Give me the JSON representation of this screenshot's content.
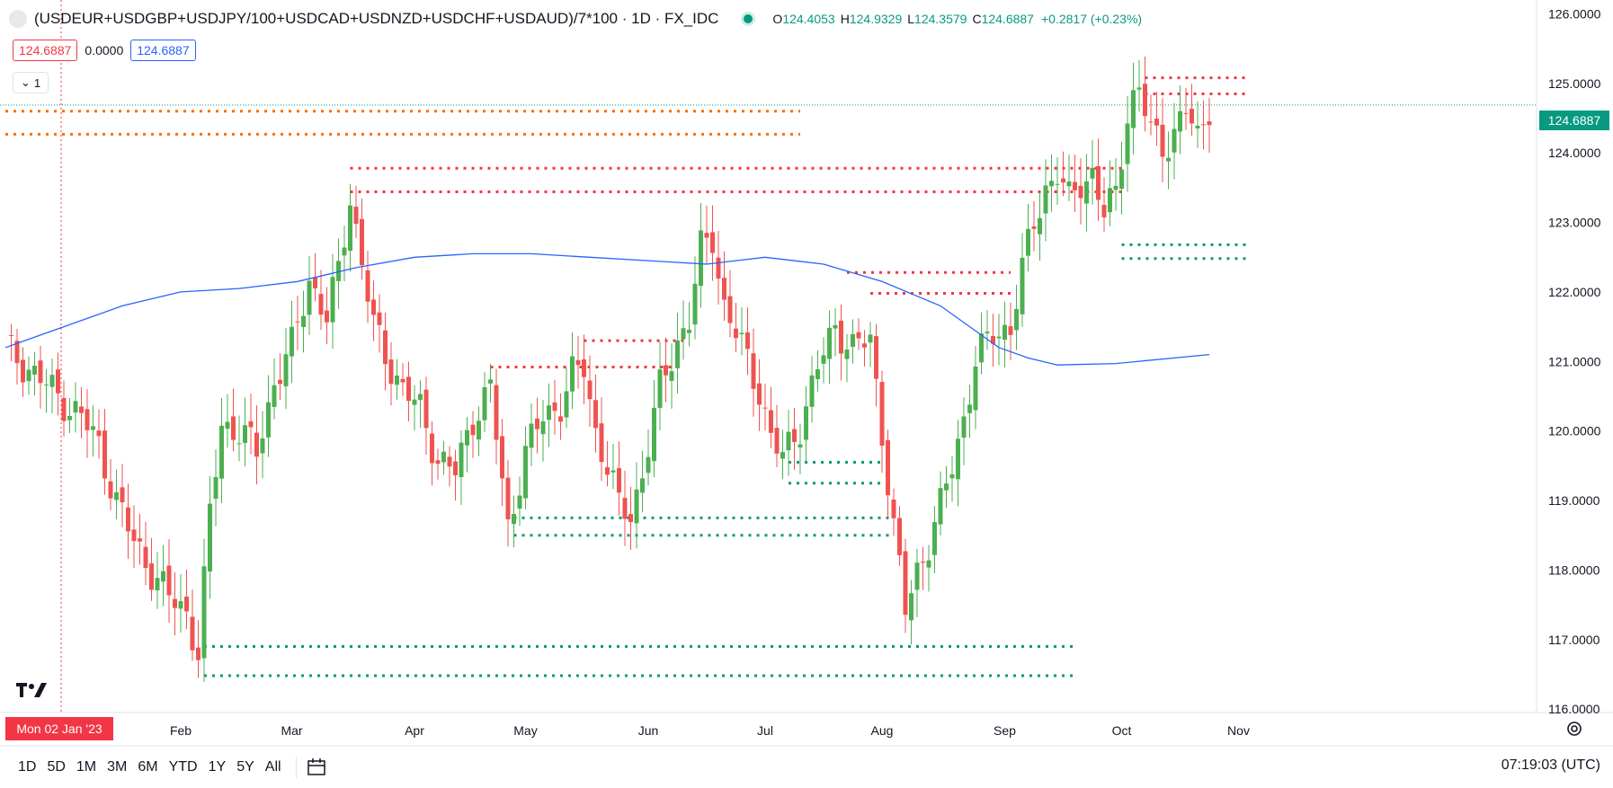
{
  "header": {
    "title": "(USDEUR+USDGBP+USDJPY/100+USDCAD+USDNZD+USDCHF+USDAUD)/7*100 · 1D · FX_IDC",
    "ohlc": [
      {
        "k": "O",
        "v": "124.4053"
      },
      {
        "k": "H",
        "v": "124.9329"
      },
      {
        "k": "L",
        "v": "124.3579"
      },
      {
        "k": "C",
        "v": "124.6887"
      }
    ],
    "change": "+0.2817 (+0.23%)"
  },
  "indicator": {
    "value_red": "124.6887",
    "value_zero": "0.0000",
    "value_blue": "124.6887"
  },
  "collapse_label": "1",
  "last_price_label": "124.6887",
  "crosshair_date": "Mon 02 Jan '23",
  "bottom_bar": {
    "ranges": [
      "1D",
      "5D",
      "1M",
      "3M",
      "6M",
      "YTD",
      "1Y",
      "5Y",
      "All"
    ],
    "time": "07:19:03 (UTC)"
  },
  "colors": {
    "up": "#4caf50",
    "down": "#ef5350",
    "ma": "#2962ff",
    "orange": "#ff6d00",
    "red_level": "#f23645",
    "green_level": "#089981"
  },
  "chart_data": {
    "type": "candlestick",
    "x_labels": [
      "Feb",
      "Mar",
      "Apr",
      "May",
      "Jun",
      "Jul",
      "Aug",
      "Sep",
      "Oct",
      "Nov"
    ],
    "y_ticks": [
      "126.0000",
      "125.0000",
      "124.0000",
      "123.0000",
      "122.0000",
      "121.0000",
      "120.0000",
      "119.0000",
      "118.0000",
      "117.0000",
      "116.0000"
    ],
    "ylim": [
      115.95,
      126.2
    ],
    "ma_series": [
      [
        0,
        121.2
      ],
      [
        10,
        121.5
      ],
      [
        20,
        121.8
      ],
      [
        30,
        122.0
      ],
      [
        40,
        122.05
      ],
      [
        50,
        122.15
      ],
      [
        60,
        122.35
      ],
      [
        70,
        122.5
      ],
      [
        80,
        122.55
      ],
      [
        90,
        122.55
      ],
      [
        100,
        122.5
      ],
      [
        110,
        122.45
      ],
      [
        120,
        122.4
      ],
      [
        125,
        122.45
      ],
      [
        130,
        122.5
      ],
      [
        140,
        122.4
      ],
      [
        150,
        122.15
      ],
      [
        160,
        121.8
      ],
      [
        165,
        121.5
      ],
      [
        170,
        121.2
      ],
      [
        175,
        121.05
      ],
      [
        180,
        120.95
      ],
      [
        190,
        120.97
      ],
      [
        200,
        121.05
      ],
      [
        206,
        121.1
      ]
    ],
    "levels": [
      {
        "color": "orange",
        "y": 124.6,
        "x0": 0,
        "x1": 136
      },
      {
        "color": "orange",
        "y": 124.27,
        "x0": 0,
        "x1": 136
      },
      {
        "color": "red",
        "y": 125.08,
        "x0": 195,
        "x1": 213
      },
      {
        "color": "red",
        "y": 124.85,
        "x0": 195,
        "x1": 213
      },
      {
        "color": "red",
        "y": 123.78,
        "x0": 59,
        "x1": 191
      },
      {
        "color": "red",
        "y": 123.44,
        "x0": 59,
        "x1": 191
      },
      {
        "color": "red",
        "y": 122.28,
        "x0": 144,
        "x1": 172
      },
      {
        "color": "red",
        "y": 121.98,
        "x0": 148,
        "x1": 172
      },
      {
        "color": "red",
        "y": 121.3,
        "x0": 99,
        "x1": 116
      },
      {
        "color": "red",
        "y": 120.92,
        "x0": 83,
        "x1": 116
      },
      {
        "color": "green",
        "y": 122.68,
        "x0": 191,
        "x1": 213
      },
      {
        "color": "green",
        "y": 122.48,
        "x0": 191,
        "x1": 213
      },
      {
        "color": "green",
        "y": 119.55,
        "x0": 134,
        "x1": 151
      },
      {
        "color": "green",
        "y": 119.25,
        "x0": 134,
        "x1": 151
      },
      {
        "color": "green",
        "y": 118.75,
        "x0": 87,
        "x1": 152
      },
      {
        "color": "green",
        "y": 118.5,
        "x0": 87,
        "x1": 152
      },
      {
        "color": "green",
        "y": 116.9,
        "x0": 34,
        "x1": 183
      },
      {
        "color": "green",
        "y": 116.48,
        "x0": 34,
        "x1": 183
      }
    ],
    "candle_anchors": [
      [
        0,
        121.2
      ],
      [
        4,
        120.9
      ],
      [
        9,
        120.5
      ],
      [
        13,
        120.2
      ],
      [
        16,
        119.8
      ],
      [
        19,
        119.0
      ],
      [
        22,
        118.4
      ],
      [
        25,
        118.0
      ],
      [
        28,
        117.6
      ],
      [
        31,
        117.4
      ],
      [
        33,
        116.8
      ],
      [
        35,
        118.8
      ],
      [
        37,
        120.1
      ],
      [
        40,
        120.0
      ],
      [
        43,
        119.7
      ],
      [
        46,
        120.7
      ],
      [
        49,
        121.2
      ],
      [
        52,
        122.2
      ],
      [
        55,
        121.6
      ],
      [
        57,
        122.3
      ],
      [
        59,
        123.4
      ],
      [
        61,
        122.4
      ],
      [
        63,
        121.5
      ],
      [
        65,
        121.1
      ],
      [
        68,
        120.6
      ],
      [
        71,
        120.3
      ],
      [
        74,
        119.6
      ],
      [
        77,
        119.4
      ],
      [
        80,
        120.2
      ],
      [
        83,
        120.6
      ],
      [
        86,
        118.6
      ],
      [
        89,
        119.7
      ],
      [
        92,
        120.2
      ],
      [
        95,
        120.4
      ],
      [
        97,
        120.8
      ],
      [
        99,
        120.9
      ],
      [
        101,
        120.0
      ],
      [
        103,
        119.5
      ],
      [
        105,
        118.9
      ],
      [
        107,
        118.8
      ],
      [
        109,
        119.4
      ],
      [
        112,
        120.6
      ],
      [
        115,
        121.3
      ],
      [
        117,
        121.6
      ],
      [
        119,
        122.6
      ],
      [
        121,
        122.8
      ],
      [
        123,
        121.8
      ],
      [
        126,
        121.2
      ],
      [
        129,
        120.6
      ],
      [
        131,
        119.9
      ],
      [
        133,
        119.6
      ],
      [
        136,
        120.1
      ],
      [
        139,
        120.9
      ],
      [
        142,
        121.5
      ],
      [
        145,
        121.2
      ],
      [
        148,
        121.3
      ],
      [
        150,
        120.0
      ],
      [
        152,
        118.6
      ],
      [
        154,
        117.4
      ],
      [
        156,
        118.0
      ],
      [
        158,
        118.4
      ],
      [
        160,
        118.9
      ],
      [
        162,
        119.5
      ],
      [
        164,
        120.2
      ],
      [
        166,
        121.0
      ],
      [
        169,
        121.4
      ],
      [
        172,
        121.5
      ],
      [
        174,
        122.3
      ],
      [
        176,
        123.0
      ],
      [
        178,
        123.5
      ],
      [
        180,
        123.7
      ],
      [
        182,
        123.3
      ],
      [
        184,
        123.6
      ],
      [
        186,
        123.7
      ],
      [
        188,
        123.1
      ],
      [
        190,
        123.4
      ],
      [
        192,
        124.6
      ],
      [
        193,
        124.8
      ],
      [
        194,
        124.9
      ],
      [
        196,
        124.3
      ],
      [
        198,
        124.1
      ],
      [
        200,
        124.3
      ],
      [
        202,
        124.6
      ],
      [
        204,
        124.2
      ],
      [
        206,
        124.7
      ]
    ]
  }
}
